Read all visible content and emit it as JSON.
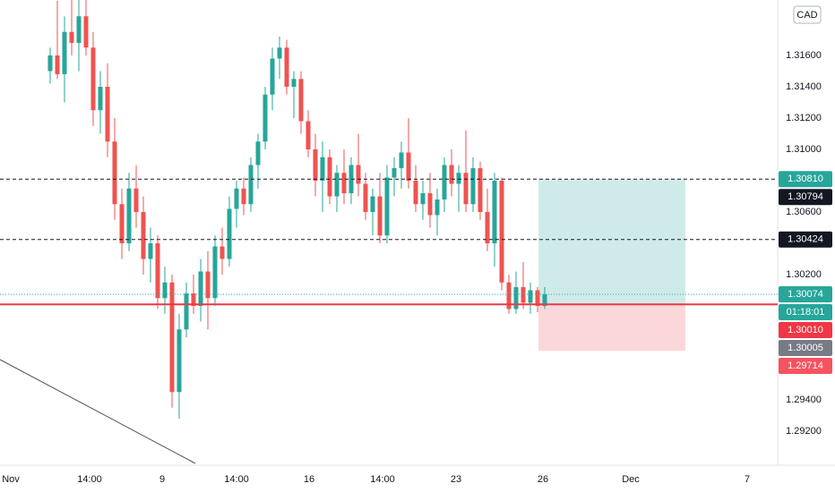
{
  "chart_data": {
    "type": "candlestick",
    "currency": "CAD",
    "up_color": "#26a69a",
    "down_color": "#ef5350",
    "ylim": [
      1.28983,
      1.31954
    ],
    "yticks": [
      {
        "value": 1.316,
        "label": "1.31600"
      },
      {
        "value": 1.314,
        "label": "1.31400"
      },
      {
        "value": 1.312,
        "label": "1.31200"
      },
      {
        "value": 1.31,
        "label": "1.31000"
      },
      {
        "value": 1.306,
        "label": "1.30600"
      },
      {
        "value": 1.302,
        "label": "1.30200"
      },
      {
        "value": 1.294,
        "label": "1.29400"
      },
      {
        "value": 1.292,
        "label": "1.29200"
      }
    ],
    "xtick_labels": [
      "Nov",
      "14:00",
      "9",
      "14:00",
      "16",
      "14:00",
      "23",
      "26",
      "Dec",
      "7"
    ],
    "open": [
      1.315,
      1.316,
      1.3148,
      1.3175,
      1.3168,
      1.3185,
      1.3165,
      1.3125,
      1.314,
      1.3105,
      1.3065,
      1.304,
      1.3075,
      1.306,
      1.303,
      1.304,
      1.3005,
      1.3015,
      1.2945,
      1.2985,
      1.3008,
      1.3,
      1.3022,
      1.3005,
      1.3038,
      1.303,
      1.3062,
      1.3075,
      1.3065,
      1.309,
      1.3105,
      1.3135,
      1.3158,
      1.3165,
      1.314,
      1.3145,
      1.3118,
      1.31,
      1.308,
      1.3095,
      1.307,
      1.3085,
      1.3072,
      1.309,
      1.3078,
      1.306,
      1.307,
      1.3045,
      1.3082,
      1.3088,
      1.3098,
      1.308,
      1.3065,
      1.3072,
      1.3058,
      1.3068,
      1.309,
      1.3078,
      1.3085,
      1.3065,
      1.3088,
      1.306,
      1.304,
      1.308,
      1.3015,
      1.2998,
      1.3012,
      1.3002,
      1.301,
      1.3
    ],
    "high": [
      1.3165,
      1.3195,
      1.3185,
      1.3196,
      1.3196,
      1.3196,
      1.3175,
      1.315,
      1.3155,
      1.312,
      1.3075,
      1.3085,
      1.309,
      1.307,
      1.305,
      1.3045,
      1.3025,
      1.302,
      1.2995,
      1.3015,
      1.302,
      1.303,
      1.3035,
      1.3045,
      1.305,
      1.307,
      1.308,
      1.3082,
      1.3095,
      1.311,
      1.314,
      1.3165,
      1.3172,
      1.317,
      1.315,
      1.315,
      1.3125,
      1.311,
      1.3105,
      1.31,
      1.309,
      1.31,
      1.3095,
      1.311,
      1.3085,
      1.3075,
      1.3085,
      1.309,
      1.3095,
      1.3105,
      1.312,
      1.309,
      1.308,
      1.3085,
      1.3075,
      1.3095,
      1.31,
      1.309,
      1.3112,
      1.3095,
      1.3092,
      1.3075,
      1.3085,
      1.3082,
      1.302,
      1.3022,
      1.3028,
      1.3015,
      1.3012,
      1.3012
    ],
    "low": [
      1.3142,
      1.3145,
      1.313,
      1.316,
      1.315,
      1.316,
      1.3115,
      1.311,
      1.3095,
      1.3055,
      1.303,
      1.3035,
      1.305,
      1.302,
      1.3015,
      1.2998,
      1.2995,
      1.2935,
      1.2928,
      1.298,
      1.2995,
      1.299,
      1.2985,
      1.3,
      1.302,
      1.3025,
      1.305,
      1.3058,
      1.306,
      1.3075,
      1.31,
      1.3125,
      1.3145,
      1.3135,
      1.312,
      1.311,
      1.3095,
      1.307,
      1.306,
      1.3065,
      1.306,
      1.3065,
      1.3065,
      1.307,
      1.3055,
      1.3045,
      1.304,
      1.304,
      1.307,
      1.3075,
      1.3075,
      1.306,
      1.3055,
      1.305,
      1.3045,
      1.306,
      1.307,
      1.306,
      1.306,
      1.306,
      1.3055,
      1.3035,
      1.3025,
      1.301,
      1.2995,
      1.2995,
      1.2998,
      1.2995,
      1.2996,
      1.2998
    ],
    "close": [
      1.316,
      1.3148,
      1.3175,
      1.3168,
      1.3185,
      1.3165,
      1.3125,
      1.314,
      1.3105,
      1.3065,
      1.304,
      1.3075,
      1.306,
      1.303,
      1.304,
      1.3005,
      1.3015,
      1.2945,
      1.2985,
      1.3008,
      1.3,
      1.3022,
      1.3005,
      1.3038,
      1.303,
      1.3062,
      1.3075,
      1.3065,
      1.309,
      1.3105,
      1.3135,
      1.3158,
      1.3165,
      1.314,
      1.3145,
      1.3118,
      1.31,
      1.308,
      1.3095,
      1.307,
      1.3085,
      1.3072,
      1.309,
      1.3078,
      1.306,
      1.307,
      1.3045,
      1.3082,
      1.3088,
      1.3098,
      1.308,
      1.3065,
      1.3072,
      1.3058,
      1.3068,
      1.309,
      1.3078,
      1.3085,
      1.3065,
      1.3088,
      1.306,
      1.304,
      1.308,
      1.3015,
      1.2998,
      1.3012,
      1.3002,
      1.301,
      1.3,
      1.30074
    ],
    "levels": [
      {
        "value": 1.3081,
        "style": "dashed",
        "color": "#131722"
      },
      {
        "value": 1.30424,
        "style": "dashed",
        "color": "#131722"
      },
      {
        "value": 1.30074,
        "style": "dotted",
        "color": "#26a69a"
      },
      {
        "value": 1.3001,
        "style": "solid",
        "color": "#f23645"
      }
    ],
    "position": {
      "target": 1.3081,
      "entry": 1.3001,
      "stop": 1.29714
    },
    "price_labels": [
      {
        "value": 1.3081,
        "label": "1.30810",
        "color": "#26a69a"
      },
      {
        "value": 1.30794,
        "label": "1.30794",
        "color": "#131722"
      },
      {
        "value": 1.30424,
        "label": "1.30424",
        "color": "#131722"
      },
      {
        "value": 1.30074,
        "label": "1.30074",
        "color": "#26a69a"
      },
      {
        "label": "01:18:01",
        "color": "#26a69a"
      },
      {
        "value": 1.3001,
        "label": "1.30010",
        "color": "#f23645"
      },
      {
        "value": 1.30005,
        "label": "1.30005",
        "color": "#787b86"
      },
      {
        "value": 1.29714,
        "label": "1.29714",
        "color": "#f7525f"
      }
    ]
  }
}
